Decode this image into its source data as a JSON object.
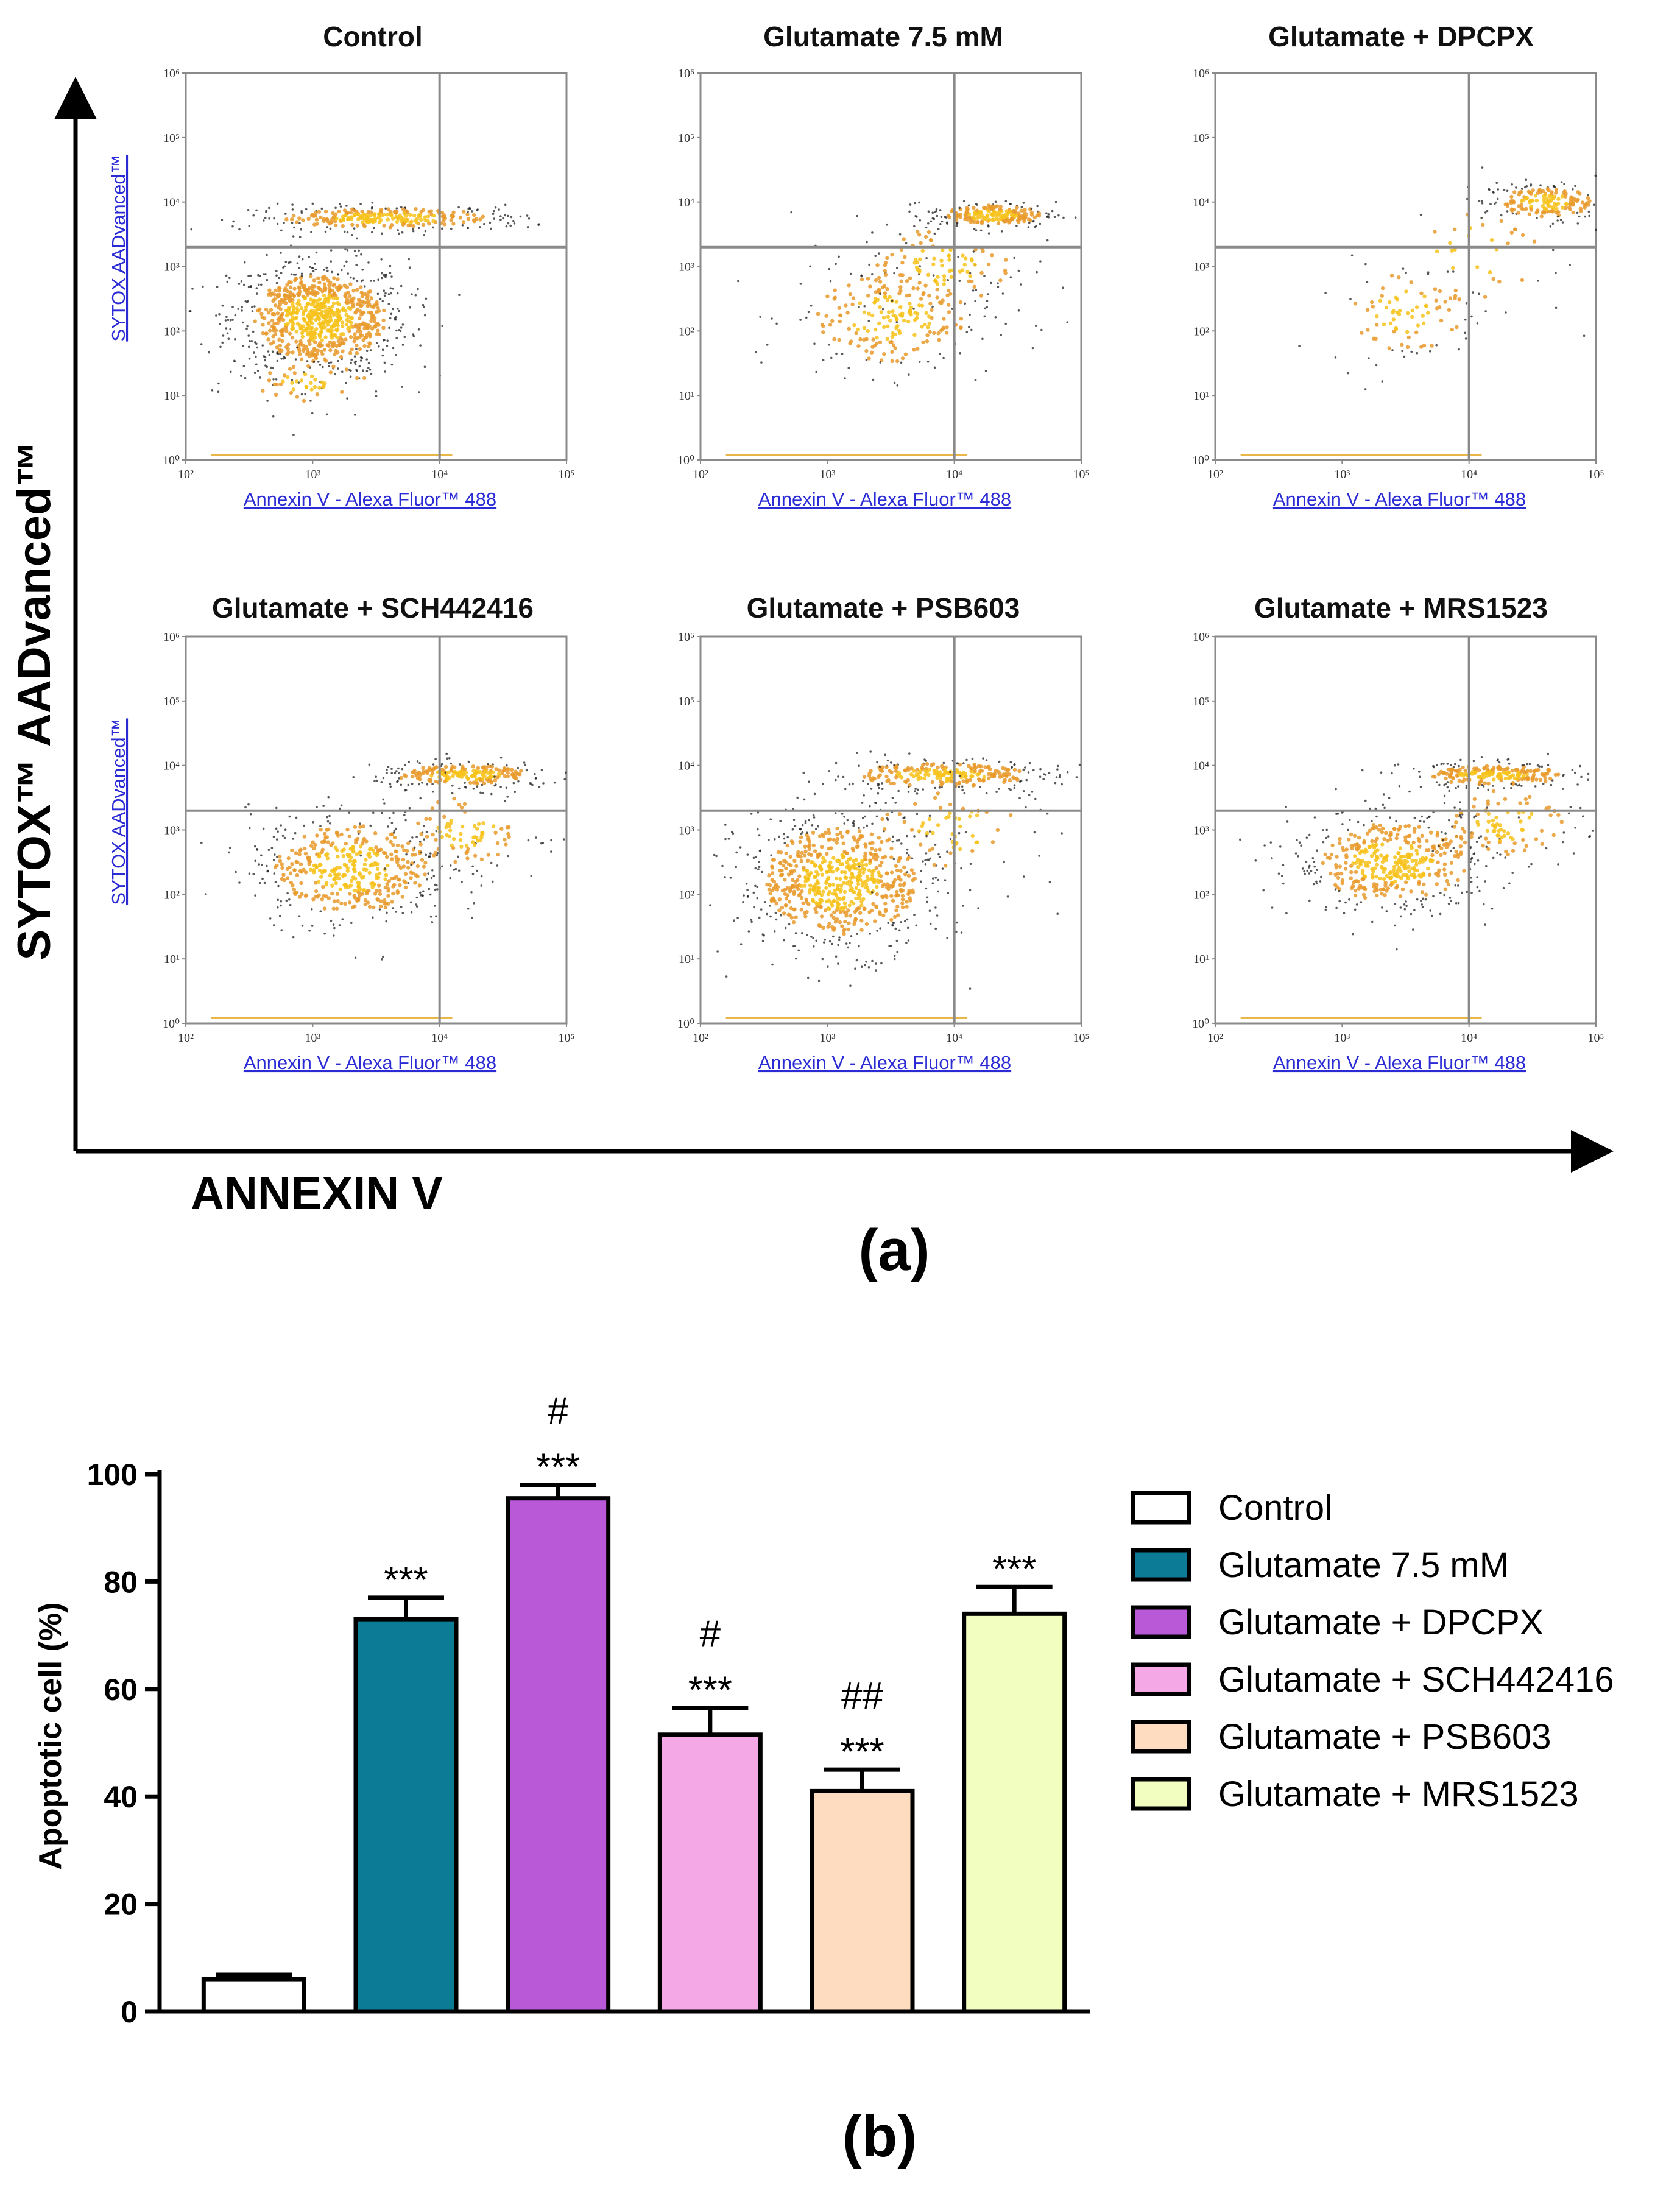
{
  "chart_data": [
    {
      "type": "scatter",
      "panel_label": "(a)",
      "shared_y_label": "SYTOX™ AADvanced™",
      "shared_x_label": "ANNEXIN V",
      "x_axis_title": "Annexin V - Alexa Fluor™ 488",
      "y_axis_title": "SYTOX AADvanced™",
      "x_ticks": [
        "10²",
        "10³",
        "10⁴",
        "10⁵"
      ],
      "y_ticks": [
        "10⁰",
        "10¹",
        "10²",
        "10³",
        "10⁴",
        "10⁵",
        "10⁶"
      ],
      "xlim_log10": [
        2,
        5
      ],
      "ylim_log10": [
        0,
        6
      ],
      "quadrant_gate": {
        "x_log10": 4.0,
        "y_log10": 3.3
      },
      "panels": [
        {
          "title": "Control",
          "show_y_axis_title": true,
          "density": "high"
        },
        {
          "title": "Glutamate 7.5 mM",
          "show_y_axis_title": false,
          "density": "medium"
        },
        {
          "title": "Glutamate + DPCPX",
          "show_y_axis_title": false,
          "density": "low"
        },
        {
          "title": "Glutamate + SCH442416",
          "show_y_axis_title": true,
          "density": "medium"
        },
        {
          "title": "Glutamate + PSB603",
          "show_y_axis_title": false,
          "density": "high"
        },
        {
          "title": "Glutamate + MRS1523",
          "show_y_axis_title": false,
          "density": "medium"
        }
      ]
    },
    {
      "type": "bar",
      "panel_label": "(b)",
      "ylabel": "Apoptotic cell (%)",
      "xlabel": "",
      "ylim": [
        0,
        100
      ],
      "yticks": [
        0,
        20,
        40,
        60,
        80,
        100
      ],
      "categories": [
        "Control",
        "Glutamate 7.5 mM",
        "Glutamate + DPCPX",
        "Glutamate + SCH442416",
        "Glutamate + PSB603",
        "Glutamate + MRS1523"
      ],
      "values": [
        6,
        73,
        95.5,
        51.5,
        41,
        74
      ],
      "errors": [
        0.8,
        4,
        2.5,
        5,
        4,
        5
      ],
      "colors": [
        "#ffffff",
        "#0b7b96",
        "#b959d8",
        "#f4a9e6",
        "#fddcbf",
        "#f2fdc0"
      ],
      "significance": [
        [],
        [
          "***"
        ],
        [
          "#",
          "***"
        ],
        [
          "#",
          "***"
        ],
        [
          "##",
          "***"
        ],
        [
          "***"
        ]
      ],
      "legend": [
        "Control",
        "Glutamate 7.5 mM",
        "Glutamate + DPCPX",
        "Glutamate + SCH442416",
        "Glutamate + PSB603",
        "Glutamate + MRS1523"
      ]
    }
  ]
}
